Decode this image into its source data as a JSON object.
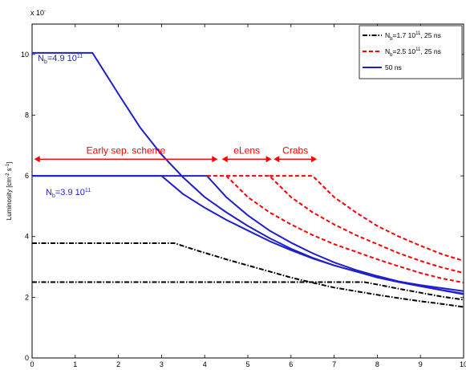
{
  "chart_data": {
    "type": "line",
    "y_exponent_label": "x 10",
    "ylabel": "Luminosity [cm",
    "ylabel_sup1": "-2",
    "ylabel_mid": " s",
    "ylabel_sup2": "-1",
    "ylabel_end": "]",
    "xlim": [
      0,
      10
    ],
    "ylim": [
      0,
      11
    ],
    "xticks": [
      "0",
      "1",
      "2",
      "3",
      "4",
      "5",
      "6",
      "7",
      "8",
      "9",
      "10"
    ],
    "yticks": [
      "0",
      "2",
      "4",
      "6",
      "8",
      "10"
    ],
    "grid": false,
    "legend": {
      "placement": "top-right",
      "entries": [
        {
          "text": "N",
          "sub": "b",
          "rest": "=1.7 10",
          "sup": "11",
          "end": ", 25 ns",
          "color": "#000000",
          "dash": "6,2,1.5,2"
        },
        {
          "text": "N",
          "sub": "b",
          "rest": "=2.5 10",
          "sup": "11",
          "end": ", 25 ns",
          "color": "#ff0000",
          "dash": "5,3"
        },
        {
          "text": "50 ns",
          "sub": "",
          "rest": "",
          "sup": "",
          "end": "",
          "color": "#1f1fcc",
          "dash": ""
        }
      ]
    },
    "series": [
      {
        "color": "#1f1fcc",
        "dash": "",
        "points": [
          [
            0,
            10.05
          ],
          [
            1.4,
            10.05
          ],
          [
            2.0,
            8.7
          ],
          [
            2.5,
            7.6
          ],
          [
            3.0,
            6.7
          ],
          [
            3.5,
            5.95
          ],
          [
            4,
            5.3
          ],
          [
            4.5,
            4.8
          ],
          [
            5,
            4.35
          ],
          [
            5.5,
            3.95
          ],
          [
            6,
            3.6
          ],
          [
            6.5,
            3.3
          ],
          [
            7,
            3.05
          ],
          [
            7.5,
            2.85
          ],
          [
            8,
            2.65
          ],
          [
            8.5,
            2.5
          ],
          [
            9,
            2.36
          ],
          [
            9.5,
            2.23
          ],
          [
            10,
            2.1
          ]
        ]
      },
      {
        "color": "#1f1fcc",
        "dash": "",
        "points": [
          [
            0,
            6.0
          ],
          [
            3.0,
            6.0
          ],
          [
            3.5,
            5.4
          ],
          [
            4,
            4.95
          ],
          [
            4.5,
            4.55
          ],
          [
            5,
            4.2
          ],
          [
            5.5,
            3.85
          ],
          [
            6,
            3.55
          ],
          [
            6.5,
            3.28
          ],
          [
            7,
            3.05
          ],
          [
            7.5,
            2.85
          ],
          [
            8,
            2.68
          ],
          [
            8.5,
            2.52
          ],
          [
            9,
            2.4
          ],
          [
            9.5,
            2.3
          ],
          [
            10,
            2.2
          ]
        ]
      },
      {
        "color": "#1f1fcc",
        "dash": "",
        "points": [
          [
            0,
            6.0
          ],
          [
            4.05,
            6.0
          ],
          [
            4.5,
            5.3
          ],
          [
            5,
            4.7
          ],
          [
            5.5,
            4.2
          ],
          [
            6,
            3.8
          ],
          [
            6.5,
            3.45
          ],
          [
            7,
            3.15
          ],
          [
            7.5,
            2.9
          ],
          [
            8,
            2.7
          ],
          [
            8.5,
            2.52
          ],
          [
            9,
            2.37
          ],
          [
            9.5,
            2.24
          ],
          [
            10,
            2.12
          ]
        ]
      },
      {
        "color": "#ff0000",
        "dash": "5,3",
        "points": [
          [
            4.05,
            6.0
          ],
          [
            4.5,
            6.0
          ],
          [
            5,
            5.3
          ],
          [
            5.5,
            4.8
          ],
          [
            6,
            4.4
          ],
          [
            6.5,
            4.05
          ],
          [
            7,
            3.75
          ],
          [
            7.5,
            3.5
          ],
          [
            8,
            3.25
          ],
          [
            8.5,
            3.02
          ],
          [
            9,
            2.8
          ],
          [
            9.5,
            2.62
          ],
          [
            10,
            2.48
          ]
        ]
      },
      {
        "color": "#ff0000",
        "dash": "5,3",
        "points": [
          [
            4.5,
            6.0
          ],
          [
            5.5,
            6.0
          ],
          [
            6,
            5.3
          ],
          [
            6.5,
            4.8
          ],
          [
            7,
            4.4
          ],
          [
            7.5,
            4.05
          ],
          [
            8,
            3.75
          ],
          [
            8.5,
            3.45
          ],
          [
            9,
            3.2
          ],
          [
            9.5,
            2.98
          ],
          [
            10,
            2.8
          ]
        ]
      },
      {
        "color": "#ff0000",
        "dash": "5,3",
        "points": [
          [
            5.5,
            6.0
          ],
          [
            6.5,
            6.0
          ],
          [
            7,
            5.3
          ],
          [
            7.5,
            4.8
          ],
          [
            8,
            4.35
          ],
          [
            8.5,
            4.0
          ],
          [
            9,
            3.7
          ],
          [
            9.5,
            3.42
          ],
          [
            10,
            3.2
          ]
        ]
      },
      {
        "color": "#000000",
        "dash": "6,2,1.5,2",
        "points": [
          [
            0,
            3.78
          ],
          [
            3.3,
            3.78
          ],
          [
            3.8,
            3.55
          ],
          [
            4.5,
            3.25
          ],
          [
            5,
            3.05
          ],
          [
            5.5,
            2.85
          ],
          [
            6,
            2.65
          ],
          [
            6.5,
            2.48
          ],
          [
            7,
            2.32
          ],
          [
            7.5,
            2.2
          ],
          [
            8,
            2.08
          ],
          [
            8.5,
            1.97
          ],
          [
            9,
            1.87
          ],
          [
            9.5,
            1.78
          ],
          [
            10,
            1.68
          ]
        ]
      },
      {
        "color": "#000000",
        "dash": "6,2,1.5,2",
        "points": [
          [
            0,
            2.5
          ],
          [
            7.7,
            2.5
          ],
          [
            8,
            2.42
          ],
          [
            8.5,
            2.28
          ],
          [
            9,
            2.15
          ],
          [
            9.5,
            2.02
          ],
          [
            10,
            1.92
          ]
        ]
      }
    ],
    "annotations": {
      "ne_high": {
        "text": "N",
        "sub": "b",
        "rest": "=4.9 10",
        "sup": "11"
      },
      "ne_low": {
        "text": "N",
        "sub": "b",
        "rest": "=3.9 10",
        "sup": "11"
      },
      "spans": [
        {
          "label": "Early sep. scheme",
          "x0": 0.05,
          "x1": 4.3,
          "y": 6.55
        },
        {
          "label": "eLens",
          "x0": 4.4,
          "x1": 5.55,
          "y": 6.55
        },
        {
          "label": "Crabs",
          "x0": 5.6,
          "x1": 6.6,
          "y": 6.55
        }
      ]
    }
  }
}
